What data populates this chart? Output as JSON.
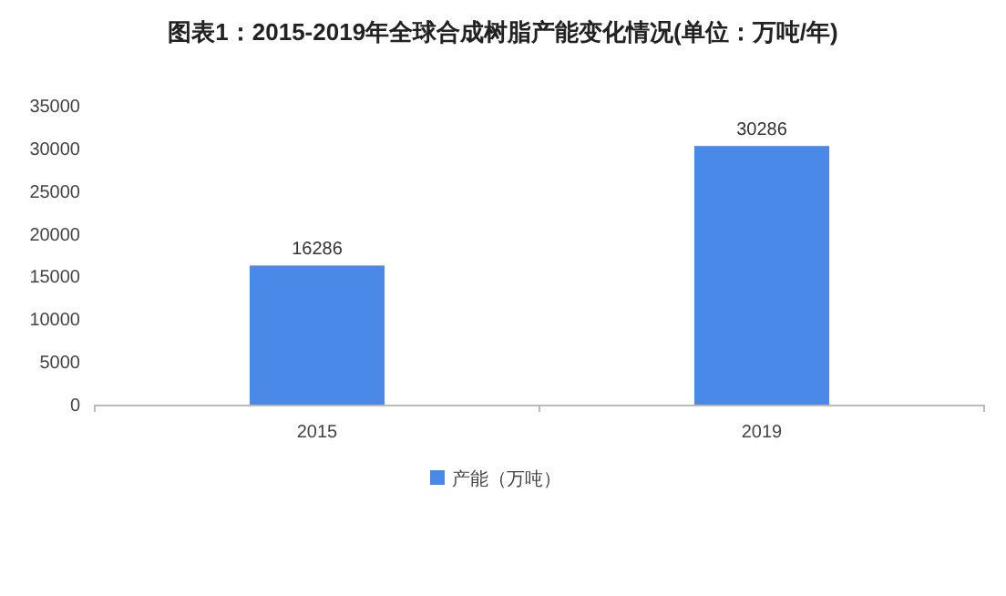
{
  "chart_data": {
    "type": "bar",
    "title": "图表1：2015-2019年全球合成树脂产能变化情况(单位：万吨/年)",
    "categories": [
      "2015",
      "2019"
    ],
    "series": [
      {
        "name": "产能（万吨）",
        "color": "#4a89e8",
        "values": [
          16286,
          30286
        ]
      }
    ],
    "ylim": [
      0,
      35000
    ],
    "yticks": [
      0,
      5000,
      10000,
      15000,
      20000,
      25000,
      30000,
      35000
    ],
    "data_labels": true,
    "legend": "bottom",
    "grid": false
  }
}
